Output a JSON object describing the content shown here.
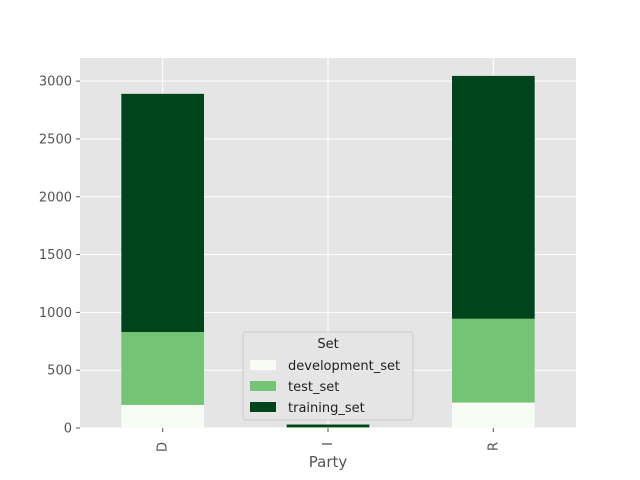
{
  "chart_data": {
    "type": "bar",
    "stacked": true,
    "style": "ggplot",
    "title": "",
    "xlabel": "Party",
    "ylabel": "",
    "categories": [
      "D",
      "I",
      "R"
    ],
    "ylim": [
      0,
      3200
    ],
    "yticks": [
      0,
      500,
      1000,
      1500,
      2000,
      2500,
      3000
    ],
    "grid": true,
    "series": [
      {
        "name": "development_set",
        "color": "#f7fcf5",
        "values": [
          200,
          2,
          220
        ]
      },
      {
        "name": "test_set",
        "color": "#74c476",
        "values": [
          630,
          5,
          725
        ]
      },
      {
        "name": "training_set",
        "color": "#00441b",
        "values": [
          2060,
          23,
          2100
        ]
      }
    ],
    "legend": {
      "title": "Set",
      "position": "bottom-center"
    }
  }
}
